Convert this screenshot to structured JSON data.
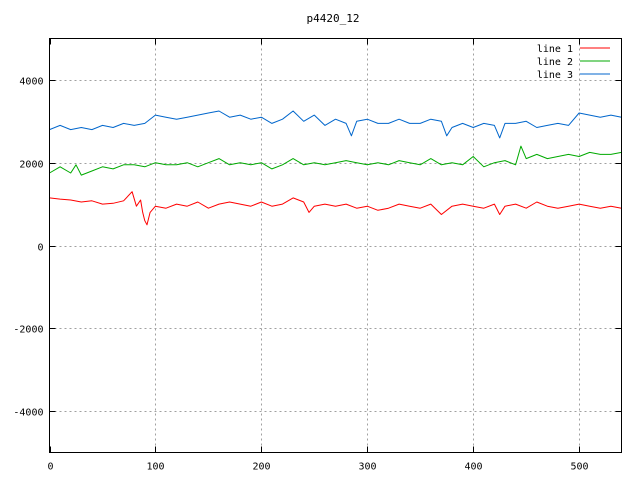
{
  "chart_data": {
    "type": "line",
    "title": "p4420_12",
    "xlabel": "",
    "ylabel": "",
    "xlim": [
      0,
      540
    ],
    "ylim": [
      -5000,
      5000
    ],
    "xticks": [
      0,
      100,
      200,
      300,
      400,
      500
    ],
    "yticks": [
      -4000,
      -2000,
      0,
      2000,
      4000
    ],
    "grid": true,
    "legend_position": "top-right",
    "series": [
      {
        "name": "line 1",
        "color": "#ff0000",
        "x": [
          0,
          10,
          20,
          30,
          40,
          50,
          60,
          70,
          78,
          82,
          86,
          88,
          90,
          92,
          95,
          100,
          110,
          120,
          130,
          140,
          150,
          160,
          170,
          180,
          190,
          200,
          210,
          220,
          230,
          240,
          245,
          250,
          260,
          270,
          280,
          290,
          300,
          310,
          320,
          330,
          340,
          350,
          360,
          370,
          380,
          390,
          400,
          410,
          420,
          425,
          430,
          440,
          450,
          460,
          470,
          480,
          490,
          500,
          510,
          520,
          530,
          540
        ],
        "y": [
          1150,
          1120,
          1100,
          1050,
          1080,
          1000,
          1020,
          1080,
          1300,
          950,
          1100,
          800,
          600,
          500,
          800,
          950,
          900,
          1000,
          950,
          1050,
          900,
          1000,
          1050,
          1000,
          950,
          1050,
          950,
          1000,
          1150,
          1050,
          800,
          950,
          1000,
          950,
          1000,
          900,
          950,
          850,
          900,
          1000,
          950,
          900,
          1000,
          750,
          950,
          1000,
          950,
          900,
          1000,
          750,
          950,
          1000,
          900,
          1050,
          950,
          900,
          950,
          1000,
          950,
          900,
          950,
          900
        ]
      },
      {
        "name": "line 2",
        "color": "#00aa00",
        "x": [
          0,
          10,
          20,
          25,
          30,
          40,
          50,
          60,
          70,
          80,
          90,
          100,
          110,
          120,
          130,
          140,
          150,
          160,
          170,
          180,
          190,
          200,
          210,
          220,
          230,
          240,
          250,
          260,
          270,
          280,
          290,
          300,
          310,
          320,
          330,
          340,
          350,
          360,
          370,
          380,
          390,
          400,
          410,
          420,
          430,
          440,
          445,
          450,
          460,
          470,
          480,
          490,
          500,
          510,
          520,
          530,
          540
        ],
        "y": [
          1750,
          1900,
          1750,
          1950,
          1700,
          1800,
          1900,
          1850,
          1950,
          1950,
          1900,
          2000,
          1950,
          1950,
          2000,
          1900,
          2000,
          2100,
          1950,
          2000,
          1950,
          2000,
          1850,
          1950,
          2100,
          1950,
          2000,
          1950,
          2000,
          2050,
          2000,
          1950,
          2000,
          1950,
          2050,
          2000,
          1950,
          2100,
          1950,
          2000,
          1950,
          2150,
          1900,
          2000,
          2050,
          1950,
          2400,
          2100,
          2200,
          2100,
          2150,
          2200,
          2150,
          2250,
          2200,
          2200,
          2250
        ]
      },
      {
        "name": "line 3",
        "color": "#0066cc",
        "x": [
          0,
          10,
          20,
          30,
          40,
          50,
          60,
          70,
          80,
          90,
          100,
          110,
          120,
          130,
          140,
          150,
          160,
          170,
          180,
          190,
          200,
          210,
          220,
          230,
          240,
          250,
          260,
          270,
          280,
          285,
          290,
          300,
          310,
          320,
          330,
          340,
          350,
          360,
          370,
          375,
          380,
          390,
          400,
          410,
          420,
          425,
          430,
          440,
          450,
          460,
          470,
          480,
          490,
          500,
          510,
          520,
          530,
          540
        ],
        "y": [
          2800,
          2900,
          2800,
          2850,
          2800,
          2900,
          2850,
          2950,
          2900,
          2950,
          3150,
          3100,
          3050,
          3100,
          3150,
          3200,
          3250,
          3100,
          3150,
          3050,
          3100,
          2950,
          3050,
          3250,
          3000,
          3150,
          2900,
          3050,
          2950,
          2650,
          3000,
          3050,
          2950,
          2950,
          3050,
          2950,
          2950,
          3050,
          3000,
          2650,
          2850,
          2950,
          2850,
          2950,
          2900,
          2600,
          2950,
          2950,
          3000,
          2850,
          2900,
          2950,
          2900,
          3200,
          3150,
          3100,
          3150,
          3100
        ]
      }
    ]
  }
}
